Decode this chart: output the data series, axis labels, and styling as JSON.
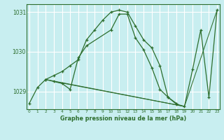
{
  "title": "Graphe pression niveau de la mer (hPa)",
  "bg_color": "#c8eef0",
  "grid_color": "#ffffff",
  "line_color": "#2d6e2d",
  "series": [
    {
      "x": [
        0,
        1,
        2,
        3,
        4,
        5,
        6,
        7,
        8,
        9,
        10,
        11,
        12,
        13,
        14,
        15,
        16,
        17,
        18
      ],
      "y": [
        1028.7,
        1029.1,
        1029.3,
        1029.4,
        1029.5,
        1029.65,
        1029.8,
        1030.3,
        1030.55,
        1030.8,
        1031.0,
        1031.05,
        1031.0,
        1030.65,
        1030.3,
        1030.1,
        1029.65,
        1028.85,
        1028.7
      ]
    },
    {
      "x": [
        2,
        3,
        4,
        5,
        6,
        7,
        10,
        11,
        12,
        13,
        14,
        15,
        16,
        17,
        18,
        19,
        20,
        21,
        22,
        23
      ],
      "y": [
        1029.3,
        1029.25,
        1029.2,
        1029.05,
        1029.85,
        1030.15,
        1030.55,
        1030.95,
        1030.95,
        1030.35,
        1030.05,
        1029.6,
        1029.05,
        1028.85,
        1028.68,
        1028.62,
        1029.55,
        1030.55,
        1028.85,
        1031.05
      ]
    },
    {
      "x": [
        2,
        19,
        23
      ],
      "y": [
        1029.3,
        1028.62,
        1031.05
      ]
    },
    {
      "x": [
        3,
        19
      ],
      "y": [
        1029.25,
        1028.62
      ]
    }
  ],
  "xlim": [
    -0.3,
    23.3
  ],
  "ylim": [
    1028.55,
    1031.2
  ],
  "yticks": [
    1029,
    1030,
    1031
  ],
  "xticks": [
    0,
    1,
    2,
    3,
    4,
    5,
    6,
    7,
    8,
    9,
    10,
    11,
    12,
    13,
    14,
    15,
    16,
    17,
    18,
    19,
    20,
    21,
    22,
    23
  ]
}
